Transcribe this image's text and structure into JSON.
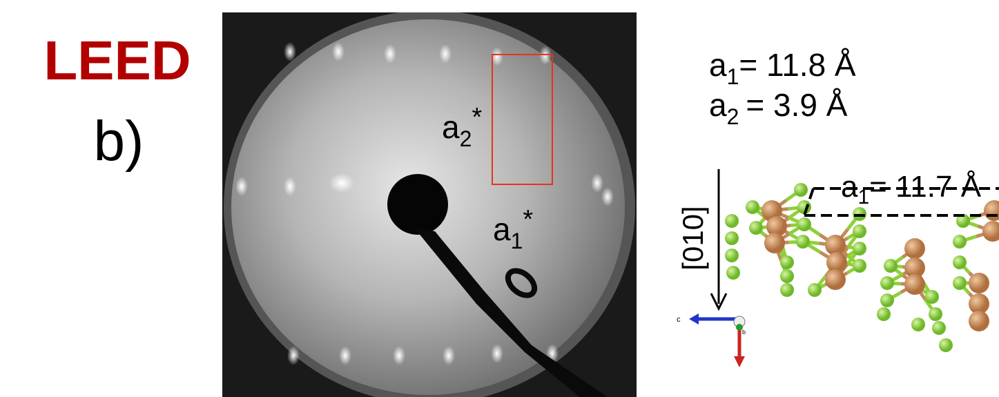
{
  "title": "LEED",
  "panel": "b)",
  "leed": {
    "labels": [
      {
        "base": "a",
        "sub": "2",
        "sup": "*"
      },
      {
        "base": "a",
        "sub": "1",
        "sup": "*"
      }
    ]
  },
  "lattice": [
    {
      "base": "a",
      "sub": "1",
      "rest": "= 11.8 Å"
    },
    {
      "base": "a",
      "sub": "2",
      "rest": "= 3.9 Å"
    }
  ],
  "structure": {
    "unit_label": {
      "base": "a",
      "sub": "1",
      "rest": "= 11.7 Å"
    },
    "direction": "[010]",
    "axes": [
      "c",
      "b"
    ]
  }
}
